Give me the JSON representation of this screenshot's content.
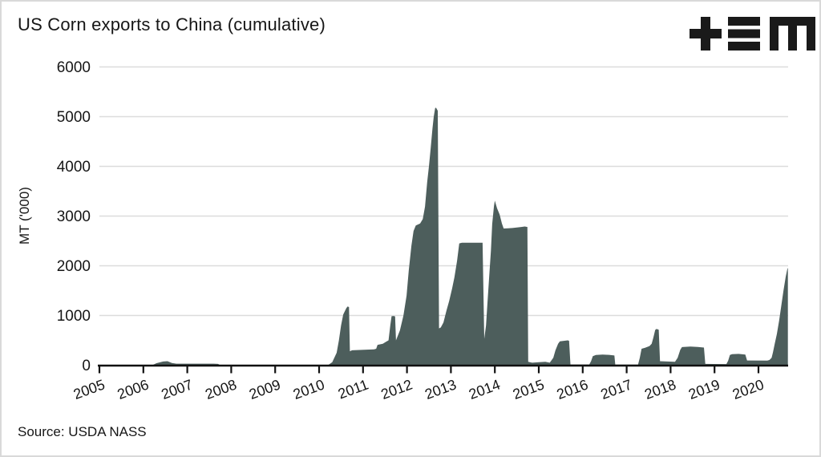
{
  "header": {
    "title": "US Corn exports to China (cumulative)",
    "logo": {
      "name": "tem-logo",
      "glyphs": [
        "plus-icon",
        "triple-bar-icon",
        "m-icon"
      ],
      "color": "#1a1a1a"
    }
  },
  "footer": {
    "source": "Source: USDA NASS"
  },
  "colors": {
    "area_fill": "#4d5e5c",
    "axis": "#111111",
    "gridline": "#dcdcdc",
    "text": "#161616",
    "background": "#ffffff",
    "border": "#d9d9d9"
  },
  "chart_data": {
    "type": "area",
    "title": "US Corn exports to China (cumulative)",
    "xlabel": "",
    "ylabel": "MT ('000)",
    "x_ticks": [
      2005,
      2006,
      2007,
      2008,
      2009,
      2010,
      2011,
      2012,
      2013,
      2014,
      2015,
      2016,
      2017,
      2018,
      2019,
      2020
    ],
    "y_ticks": [
      0,
      1000,
      2000,
      3000,
      4000,
      5000,
      6000
    ],
    "xlim": [
      2005,
      2020.7
    ],
    "ylim": [
      0,
      6000
    ],
    "grid": "horizontal",
    "legend": "none",
    "x_tick_rotation_deg": -20,
    "series": [
      {
        "name": "Cumulative exports (MT '000)",
        "color": "#4d5e5c",
        "points": [
          [
            2005.0,
            0
          ],
          [
            2006.2,
            0
          ],
          [
            2006.3,
            40
          ],
          [
            2006.45,
            75
          ],
          [
            2006.55,
            80
          ],
          [
            2006.65,
            45
          ],
          [
            2006.75,
            30
          ],
          [
            2007.6,
            30
          ],
          [
            2007.7,
            25
          ],
          [
            2007.75,
            0
          ],
          [
            2010.2,
            0
          ],
          [
            2010.3,
            60
          ],
          [
            2010.4,
            250
          ],
          [
            2010.45,
            500
          ],
          [
            2010.5,
            800
          ],
          [
            2010.55,
            1020
          ],
          [
            2010.62,
            1150
          ],
          [
            2010.65,
            1180
          ],
          [
            2010.68,
            1170
          ],
          [
            2010.7,
            280
          ],
          [
            2010.75,
            300
          ],
          [
            2011.25,
            320
          ],
          [
            2011.3,
            330
          ],
          [
            2011.33,
            410
          ],
          [
            2011.45,
            430
          ],
          [
            2011.52,
            470
          ],
          [
            2011.58,
            500
          ],
          [
            2011.62,
            800
          ],
          [
            2011.65,
            985
          ],
          [
            2011.7,
            990
          ],
          [
            2011.73,
            980
          ],
          [
            2011.75,
            500
          ],
          [
            2011.84,
            700
          ],
          [
            2011.92,
            1000
          ],
          [
            2011.99,
            1400
          ],
          [
            2012.04,
            1900
          ],
          [
            2012.1,
            2400
          ],
          [
            2012.15,
            2700
          ],
          [
            2012.2,
            2810
          ],
          [
            2012.3,
            2850
          ],
          [
            2012.36,
            2940
          ],
          [
            2012.41,
            3190
          ],
          [
            2012.46,
            3680
          ],
          [
            2012.5,
            4000
          ],
          [
            2012.54,
            4370
          ],
          [
            2012.58,
            4760
          ],
          [
            2012.61,
            5000
          ],
          [
            2012.64,
            5170
          ],
          [
            2012.66,
            5180
          ],
          [
            2012.7,
            5120
          ],
          [
            2012.73,
            740
          ],
          [
            2012.77,
            760
          ],
          [
            2012.83,
            860
          ],
          [
            2012.9,
            1100
          ],
          [
            2012.96,
            1290
          ],
          [
            2013.03,
            1550
          ],
          [
            2013.08,
            1770
          ],
          [
            2013.14,
            2100
          ],
          [
            2013.19,
            2450
          ],
          [
            2013.25,
            2465
          ],
          [
            2013.72,
            2465
          ],
          [
            2013.76,
            530
          ],
          [
            2013.8,
            800
          ],
          [
            2013.83,
            1230
          ],
          [
            2013.87,
            1770
          ],
          [
            2013.91,
            2300
          ],
          [
            2013.94,
            2840
          ],
          [
            2013.98,
            3200
          ],
          [
            2014.0,
            3310
          ],
          [
            2014.05,
            3160
          ],
          [
            2014.11,
            3030
          ],
          [
            2014.16,
            2850
          ],
          [
            2014.2,
            2750
          ],
          [
            2014.4,
            2760
          ],
          [
            2014.6,
            2780
          ],
          [
            2014.68,
            2790
          ],
          [
            2014.74,
            2780
          ],
          [
            2014.76,
            70
          ],
          [
            2014.85,
            50
          ],
          [
            2015.0,
            60
          ],
          [
            2015.15,
            70
          ],
          [
            2015.25,
            50
          ],
          [
            2015.33,
            150
          ],
          [
            2015.38,
            300
          ],
          [
            2015.44,
            430
          ],
          [
            2015.48,
            480
          ],
          [
            2015.57,
            490
          ],
          [
            2015.66,
            500
          ],
          [
            2015.69,
            490
          ],
          [
            2015.72,
            15
          ],
          [
            2016.15,
            15
          ],
          [
            2016.19,
            80
          ],
          [
            2016.23,
            180
          ],
          [
            2016.3,
            205
          ],
          [
            2016.45,
            215
          ],
          [
            2016.6,
            208
          ],
          [
            2016.72,
            195
          ],
          [
            2016.74,
            12
          ],
          [
            2017.26,
            12
          ],
          [
            2017.3,
            150
          ],
          [
            2017.34,
            330
          ],
          [
            2017.42,
            350
          ],
          [
            2017.52,
            385
          ],
          [
            2017.57,
            430
          ],
          [
            2017.61,
            560
          ],
          [
            2017.65,
            710
          ],
          [
            2017.68,
            730
          ],
          [
            2017.73,
            715
          ],
          [
            2017.76,
            80
          ],
          [
            2018.1,
            70
          ],
          [
            2018.16,
            150
          ],
          [
            2018.22,
            310
          ],
          [
            2018.26,
            365
          ],
          [
            2018.45,
            375
          ],
          [
            2018.62,
            368
          ],
          [
            2018.76,
            355
          ],
          [
            2018.79,
            25
          ],
          [
            2019.27,
            22
          ],
          [
            2019.31,
            90
          ],
          [
            2019.35,
            205
          ],
          [
            2019.4,
            222
          ],
          [
            2019.55,
            228
          ],
          [
            2019.7,
            215
          ],
          [
            2019.74,
            95
          ],
          [
            2020.2,
            92
          ],
          [
            2020.25,
            105
          ],
          [
            2020.3,
            150
          ],
          [
            2020.33,
            260
          ],
          [
            2020.37,
            430
          ],
          [
            2020.42,
            630
          ],
          [
            2020.47,
            900
          ],
          [
            2020.52,
            1200
          ],
          [
            2020.57,
            1500
          ],
          [
            2020.62,
            1780
          ],
          [
            2020.66,
            1950
          ],
          [
            2020.67,
            1950
          ]
        ]
      }
    ],
    "source": "Source: USDA NASS"
  }
}
